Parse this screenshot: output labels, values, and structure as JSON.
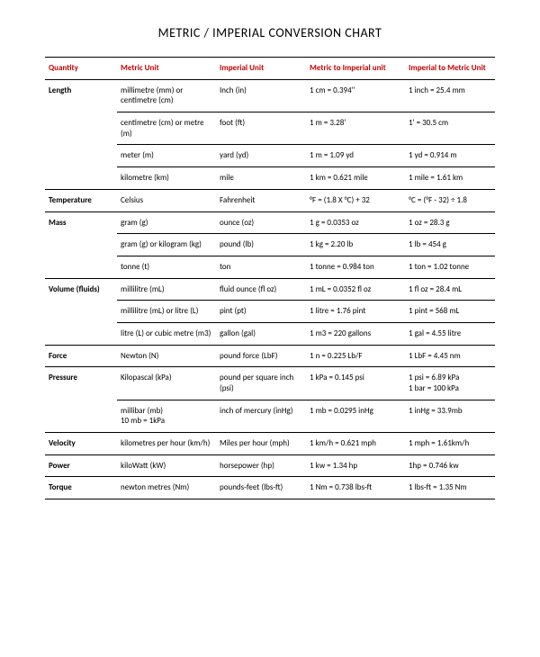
{
  "title": "METRIC / IMPERIAL CONVERSION CHART",
  "colors": {
    "header_text": "#c00000",
    "body_text": "#000000",
    "border": "#000000",
    "background": "#ffffff"
  },
  "columns": [
    "Quantity",
    "Metric Unit",
    "Imperial Unit",
    "Metric to Imperial unit",
    "Imperial to Metric Unit"
  ],
  "groups": [
    {
      "quantity": "Length",
      "rows": [
        {
          "metric": "millimetre (mm) or centimetre (cm)",
          "imperial": "Inch (in)",
          "m2i": "1 cm = 0.394\"",
          "i2m": "1 inch = 25.4 mm"
        },
        {
          "metric": "centimetre (cm) or metre (m)",
          "imperial": "foot (ft)",
          "m2i": "1 m = 3.28'",
          "i2m": "1' = 30.5 cm"
        },
        {
          "metric": "meter (m)",
          "imperial": "yard (yd)",
          "m2i": "1 m = 1.09 yd",
          "i2m": "1 yd = 0.914 m"
        },
        {
          "metric": "kilometre (km)",
          "imperial": "mile",
          "m2i": "1 km = 0.621 mile",
          "i2m": "1 mile = 1.61 km"
        }
      ]
    },
    {
      "quantity": "Temperature",
      "rows": [
        {
          "metric": "Celsius",
          "imperial": "Fahrenheit",
          "m2i": "°F = (1.8 X °C) + 32",
          "i2m": "°C = (°F - 32) ÷ 1.8"
        }
      ]
    },
    {
      "quantity": "Mass",
      "rows": [
        {
          "metric": "gram (g)",
          "imperial": "ounce (oz)",
          "m2i": "1 g = 0.0353 oz",
          "i2m": "1 oz = 28.3 g"
        },
        {
          "metric": "gram (g) or kilogram (kg)",
          "imperial": "pound (lb)",
          "m2i": "1 kg = 2.20 lb",
          "i2m": "1 lb = 454 g"
        },
        {
          "metric": "tonne (t)",
          "imperial": "ton",
          "m2i": "1 tonne = 0.984 ton",
          "i2m": "1 ton = 1.02 tonne"
        }
      ]
    },
    {
      "quantity": "Volume (fluids)",
      "rows": [
        {
          "metric": "millilitre (mL)",
          "imperial": "fluid ounce (fl oz)",
          "m2i": "1 mL = 0.0352 fl oz",
          "i2m": "1 fl oz = 28.4 mL"
        },
        {
          "metric": "millilitre (mL) or litre (L)",
          "imperial": "pint (pt)",
          "m2i": "1 litre = 1.76 pint",
          "i2m": "1 pint = 568 mL"
        },
        {
          "metric": "litre (L) or cubic metre (m3)",
          "imperial": "gallon (gal)",
          "m2i": "1 m3 = 220 gallons",
          "i2m": "1 gal = 4.55 litre"
        }
      ]
    },
    {
      "quantity": "Force",
      "rows": [
        {
          "metric": "Newton (N)",
          "imperial": "pound force (LbF)",
          "m2i": "1 n = 0.225 Lb/F",
          "i2m": "1 LbF = 4.45 nm"
        }
      ]
    },
    {
      "quantity": "Pressure",
      "rows": [
        {
          "metric": "Kilopascal (kPa)",
          "imperial": "pound per square inch (psi)",
          "m2i": "1 kPa = 0.145 psi",
          "i2m": "1 psi = 6.89 kPa\n1 bar = 100 kPa"
        },
        {
          "metric": "millibar (mb)\n10 mb = 1kPa",
          "imperial": "inch of mercury (inHg)",
          "m2i": "1 mb = 0.0295 inHg",
          "i2m": "1 inHg = 33.9mb"
        }
      ]
    },
    {
      "quantity": "Velocity",
      "rows": [
        {
          "metric": "kilometres per hour (km/h)",
          "imperial": "Miles per hour (mph)",
          "m2i": "1 km/h = 0.621 mph",
          "i2m": "1 mph = 1.61km/h"
        }
      ]
    },
    {
      "quantity": "Power",
      "rows": [
        {
          "metric": "kiloWatt (kW)",
          "imperial": "horsepower (hp)",
          "m2i": "1 kw = 1.34 hp",
          "i2m": "1hp = 0.746 kw"
        }
      ]
    },
    {
      "quantity": "Torque",
      "rows": [
        {
          "metric": "newton metres (Nm)",
          "imperial": "pounds-feet (lbs-ft)",
          "m2i": "1 Nm = 0.738 lbs-ft",
          "i2m": "1 lbs-ft = 1.35 Nm"
        }
      ]
    }
  ]
}
